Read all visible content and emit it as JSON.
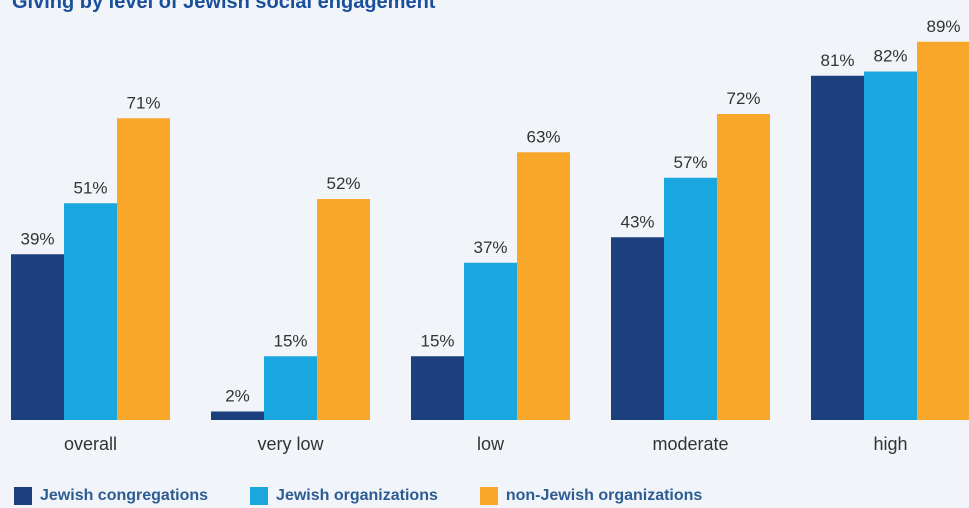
{
  "chart_data": {
    "type": "bar",
    "title": "Giving by level of Jewish social engagement",
    "categories": [
      "overall",
      "very low",
      "low",
      "moderate",
      "high"
    ],
    "series": [
      {
        "name": "Jewish congregations",
        "values": [
          39,
          2,
          15,
          43,
          81
        ],
        "color": "#1c3f7e"
      },
      {
        "name": "Jewish organizations",
        "values": [
          51,
          15,
          37,
          57,
          82
        ],
        "color": "#1aa7e0"
      },
      {
        "name": "non-Jewish organizations",
        "values": [
          71,
          52,
          63,
          72,
          89
        ],
        "color": "#f8a72b"
      }
    ],
    "value_suffix": "%",
    "ylim": [
      0,
      100
    ],
    "grid": false,
    "legend_position": "bottom"
  }
}
